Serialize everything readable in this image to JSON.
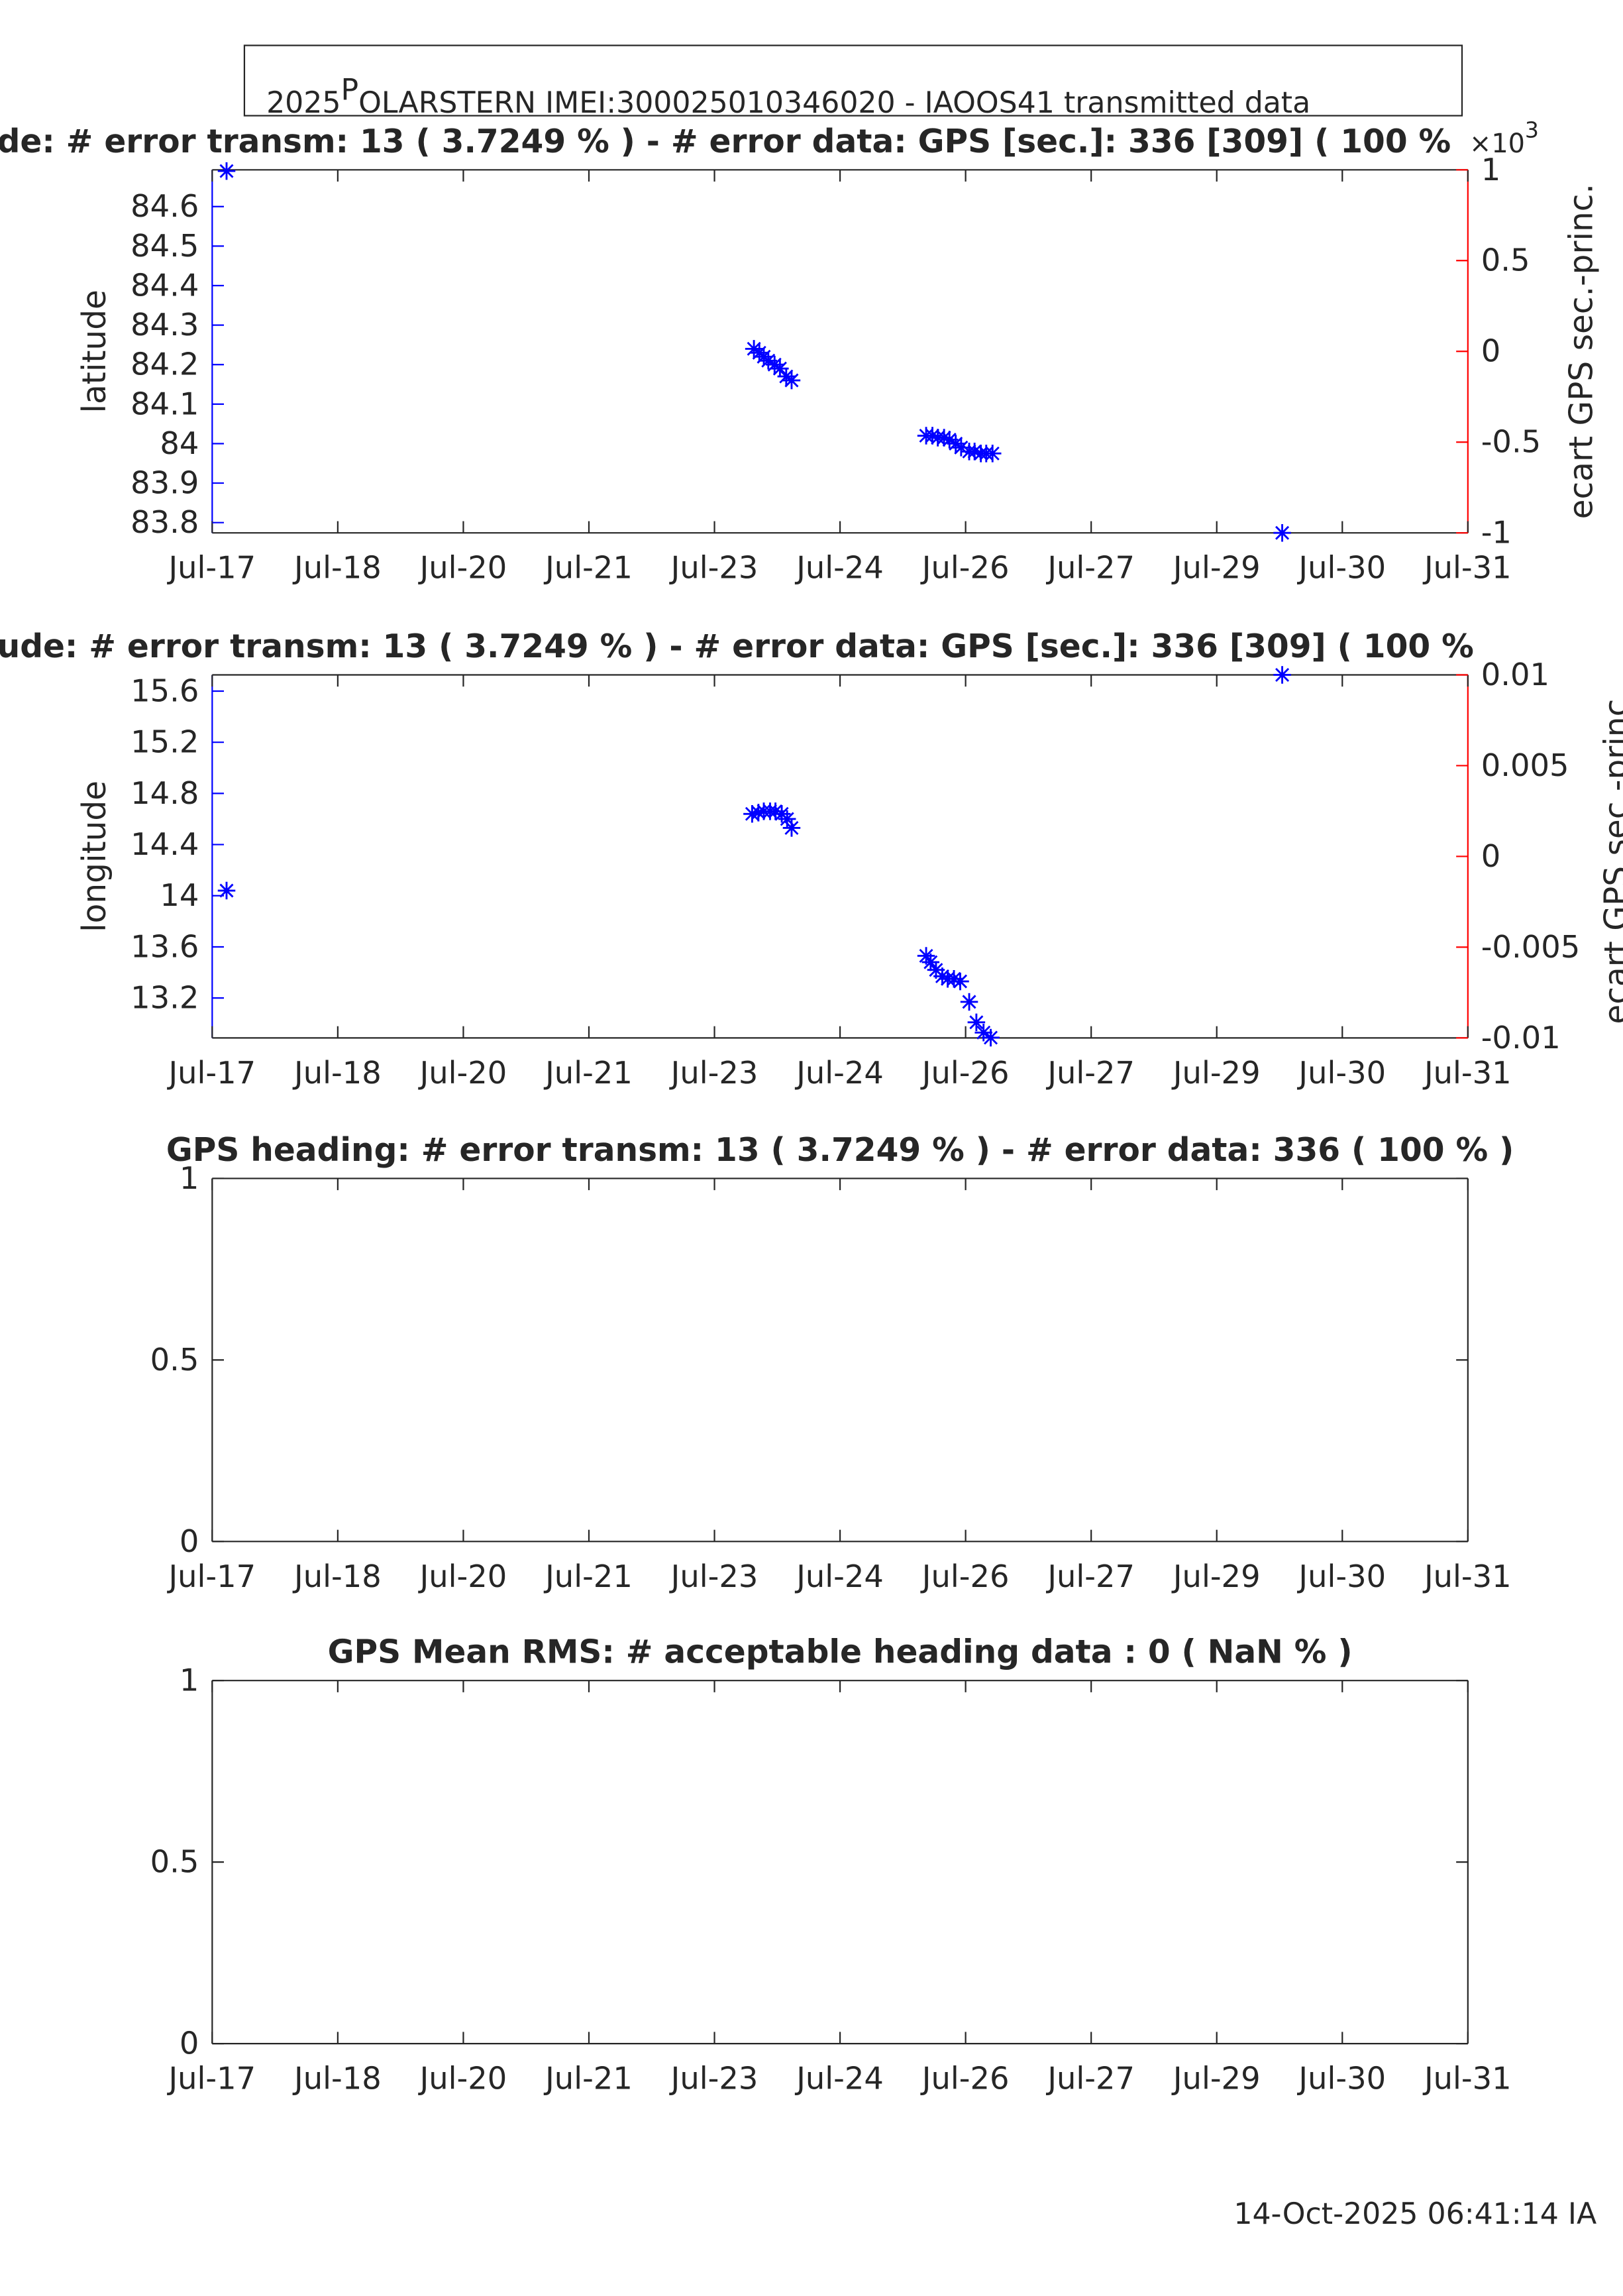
{
  "header": {
    "part1": "2025",
    "part2": "P",
    "part3": "OLARSTERN  IMEI:300025010346020  - IAOOS41 transmitted data"
  },
  "footer": "14-Oct-2025 06:41:14 IA",
  "chart_data": [
    {
      "type": "scatter",
      "title": "de: # error transm: 13  ( 3.7249 % ) - # error data: GPS [sec.]: 336 [309]  ( 100 %",
      "ylabel": "latitude",
      "y2label": "ecart GPS sec.-princ.",
      "y2_factor": "×10",
      "y2_factor_exponent": "3",
      "axis_color": "#0000ff",
      "y2_color": "#ff0000",
      "color": "#0000ff",
      "xlim": [
        17,
        31
      ],
      "xticks": [
        {
          "value": 17,
          "label": "Jul-17"
        },
        {
          "value": 18.4,
          "label": "Jul-18"
        },
        {
          "value": 19.8,
          "label": "Jul-20"
        },
        {
          "value": 21.2,
          "label": "Jul-21"
        },
        {
          "value": 22.6,
          "label": "Jul-23"
        },
        {
          "value": 24,
          "label": "Jul-24"
        },
        {
          "value": 25.4,
          "label": "Jul-26"
        },
        {
          "value": 26.8,
          "label": "Jul-27"
        },
        {
          "value": 28.2,
          "label": "Jul-29"
        },
        {
          "value": 29.6,
          "label": "Jul-30"
        },
        {
          "value": 31,
          "label": "Jul-31"
        }
      ],
      "ylim": [
        83.774,
        84.693
      ],
      "yticks": [
        83.8,
        83.9,
        84,
        84.1,
        84.2,
        84.3,
        84.4,
        84.5,
        84.6
      ],
      "y2lim": [
        -1,
        1
      ],
      "y2ticks": [
        -1,
        -0.5,
        0,
        0.5,
        1
      ],
      "x": [
        17.16,
        23.04,
        23.1,
        23.15,
        23.2,
        23.27,
        23.33,
        23.4,
        23.46,
        24.96,
        25.03,
        25.09,
        25.16,
        25.22,
        25.29,
        25.35,
        25.44,
        25.5,
        25.57,
        25.63,
        25.7,
        28.93
      ],
      "values": [
        84.69,
        84.24,
        84.23,
        84.22,
        84.21,
        84.2,
        84.19,
        84.17,
        84.16,
        84.02,
        84.02,
        84.015,
        84.015,
        84.01,
        84.0,
        83.99,
        83.98,
        83.98,
        83.975,
        83.975,
        83.975,
        83.774
      ]
    },
    {
      "type": "scatter",
      "title": "ude: # error transm: 13  ( 3.7249 % ) - # error data: GPS [sec.]: 336 [309]  ( 100 %",
      "ylabel": "longitude",
      "y2label": "ecart GPS sec.-princ.",
      "axis_color": "#0000ff",
      "y2_color": "#ff0000",
      "color": "#0000ff",
      "xlim": [
        17,
        31
      ],
      "xticks": [
        {
          "value": 17,
          "label": "Jul-17"
        },
        {
          "value": 18.4,
          "label": "Jul-18"
        },
        {
          "value": 19.8,
          "label": "Jul-20"
        },
        {
          "value": 21.2,
          "label": "Jul-21"
        },
        {
          "value": 22.6,
          "label": "Jul-23"
        },
        {
          "value": 24,
          "label": "Jul-24"
        },
        {
          "value": 25.4,
          "label": "Jul-26"
        },
        {
          "value": 26.8,
          "label": "Jul-27"
        },
        {
          "value": 28.2,
          "label": "Jul-29"
        },
        {
          "value": 29.6,
          "label": "Jul-30"
        },
        {
          "value": 31,
          "label": "Jul-31"
        }
      ],
      "ylim": [
        12.888,
        15.727
      ],
      "yticks": [
        13.2,
        13.6,
        14,
        14.4,
        14.8,
        15.2,
        15.6
      ],
      "y2lim": [
        -0.01,
        0.01
      ],
      "y2ticks": [
        -0.01,
        -0.005,
        0,
        0.005,
        0.01
      ],
      "x": [
        17.16,
        23.02,
        23.09,
        23.15,
        23.22,
        23.28,
        23.35,
        23.41,
        23.46,
        24.96,
        25.01,
        25.07,
        25.14,
        25.2,
        25.27,
        25.34,
        25.44,
        25.52,
        25.6,
        25.68,
        28.93
      ],
      "values": [
        14.04,
        14.64,
        14.65,
        14.66,
        14.66,
        14.66,
        14.64,
        14.6,
        14.53,
        13.53,
        13.48,
        13.42,
        13.37,
        13.35,
        13.35,
        13.33,
        13.17,
        13.01,
        12.93,
        12.89,
        15.727
      ]
    },
    {
      "type": "scatter",
      "title": "GPS heading: # error transm: 13  ( 3.7249 % ) - # error data: 336   ( 100 % )",
      "axis_color": "#262626",
      "color": "#0000ff",
      "xlim": [
        17,
        31
      ],
      "xticks": [
        {
          "value": 17,
          "label": "Jul-17"
        },
        {
          "value": 18.4,
          "label": "Jul-18"
        },
        {
          "value": 19.8,
          "label": "Jul-20"
        },
        {
          "value": 21.2,
          "label": "Jul-21"
        },
        {
          "value": 22.6,
          "label": "Jul-23"
        },
        {
          "value": 24,
          "label": "Jul-24"
        },
        {
          "value": 25.4,
          "label": "Jul-26"
        },
        {
          "value": 26.8,
          "label": "Jul-27"
        },
        {
          "value": 28.2,
          "label": "Jul-29"
        },
        {
          "value": 29.6,
          "label": "Jul-30"
        },
        {
          "value": 31,
          "label": "Jul-31"
        }
      ],
      "ylim": [
        0,
        1
      ],
      "yticks": [
        0,
        0.5,
        1
      ],
      "x": [],
      "values": []
    },
    {
      "type": "scatter",
      "title": "GPS Mean RMS: # acceptable heading data : 0   ( NaN % )",
      "axis_color": "#262626",
      "color": "#0000ff",
      "xlim": [
        17,
        31
      ],
      "xticks": [
        {
          "value": 17,
          "label": "Jul-17"
        },
        {
          "value": 18.4,
          "label": "Jul-18"
        },
        {
          "value": 19.8,
          "label": "Jul-20"
        },
        {
          "value": 21.2,
          "label": "Jul-21"
        },
        {
          "value": 22.6,
          "label": "Jul-23"
        },
        {
          "value": 24,
          "label": "Jul-24"
        },
        {
          "value": 25.4,
          "label": "Jul-26"
        },
        {
          "value": 26.8,
          "label": "Jul-27"
        },
        {
          "value": 28.2,
          "label": "Jul-29"
        },
        {
          "value": 29.6,
          "label": "Jul-30"
        },
        {
          "value": 31,
          "label": "Jul-31"
        }
      ],
      "ylim": [
        0,
        1
      ],
      "yticks": [
        0,
        0.5,
        1
      ],
      "x": [],
      "values": []
    }
  ]
}
